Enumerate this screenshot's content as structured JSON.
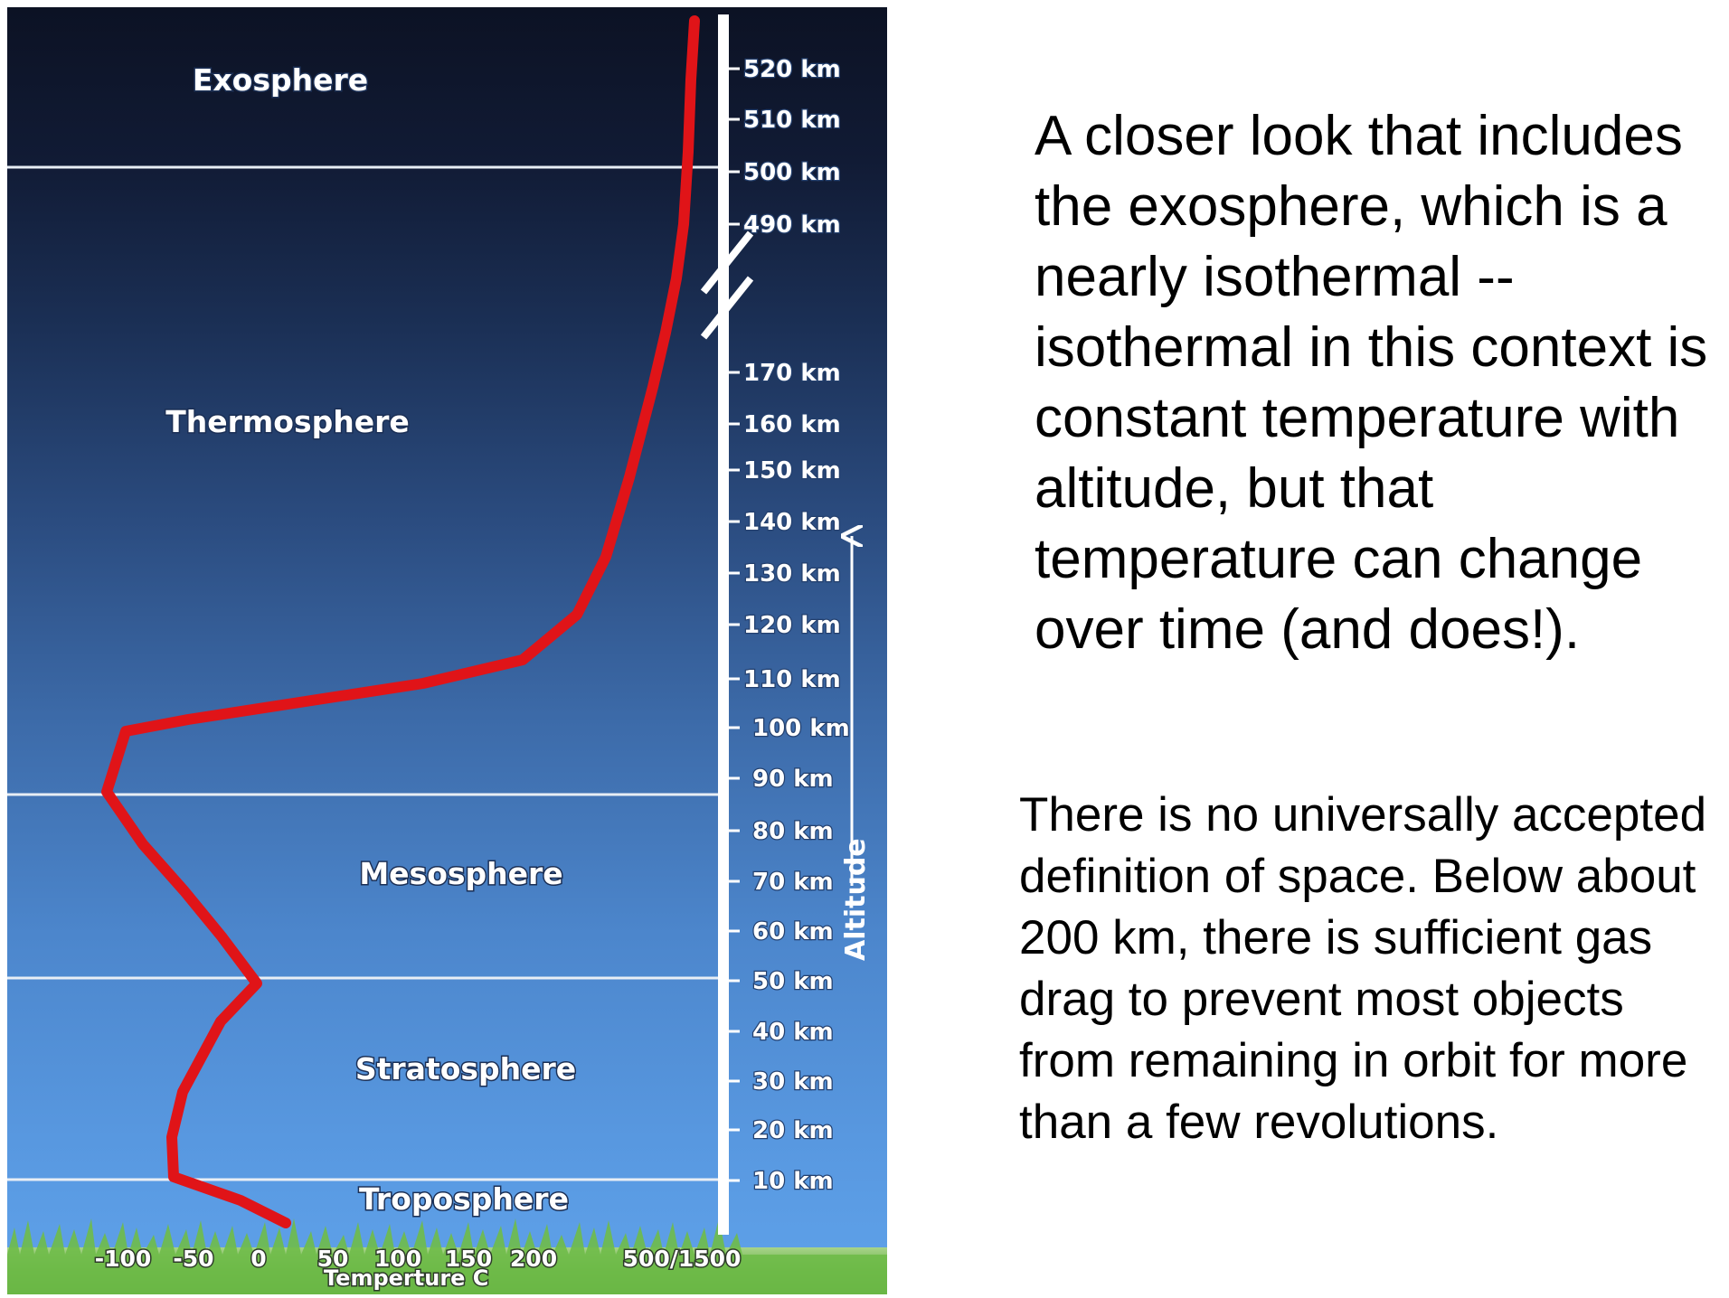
{
  "diagram": {
    "layers": [
      {
        "name": "Exosphere"
      },
      {
        "name": "Thermosphere"
      },
      {
        "name": "Mesosphere"
      },
      {
        "name": "Stratosphere"
      },
      {
        "name": "Troposphere"
      }
    ],
    "altitude_ticks": [
      "520 km",
      "510 km",
      "500 km",
      "490 km",
      "170 km",
      "160 km",
      "150 km",
      "140 km",
      "130 km",
      "120 km",
      "110 km",
      "100 km",
      "90 km",
      "80 km",
      "70 km",
      "60 km",
      "50 km",
      "40 km",
      "30 km",
      "20 km",
      "10 km"
    ],
    "altitude_axis_title": "Altitude",
    "temperature_ticks": [
      "-100",
      "-50",
      "0",
      "50",
      "100",
      "150",
      "200",
      "500/1500"
    ],
    "temperature_axis_title": "Temperture C",
    "colors": {
      "curve": "#e01418",
      "sky_top": "#0c1224",
      "sky_bottom": "#5a9de8",
      "grass": "#5aa63a"
    }
  },
  "text": {
    "paragraph_1": "A closer look that includes the exosphere, which is a nearly isothermal -- isothermal in this context is constant temperature with altitude, but that temperature can change over time (and does!).",
    "paragraph_2": "There is no universally accepted definition of space. Below about 200 km, there is sufficient gas drag to prevent most objects from remaining in orbit for more than a few revolutions."
  }
}
